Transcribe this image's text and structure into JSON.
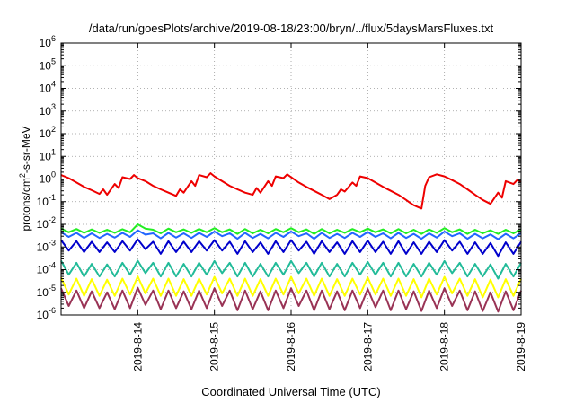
{
  "chart_data": {
    "type": "line",
    "title": "/data/run/goesPlots/archive/2019-08-18/23:00/bryn/../flux/5daysMarsFluxes.txt",
    "xlabel": "Coordinated Universal Time (UTC)",
    "ylabel": {
      "prefix": "protons/cm",
      "sup": "2",
      "suffix": "-s-sr-MeV"
    },
    "yscale": "log",
    "ylim": [
      1e-06,
      1000000.0
    ],
    "xlim": [
      13.0,
      19.0
    ],
    "grid": true,
    "legend": "none",
    "x_ticks": [
      {
        "x": 14,
        "label": "2019-8-14"
      },
      {
        "x": 15,
        "label": "2019-8-15"
      },
      {
        "x": 16,
        "label": "2019-8-16"
      },
      {
        "x": 17,
        "label": "2019-8-17"
      },
      {
        "x": 18,
        "label": "2019-8-18"
      },
      {
        "x": 19,
        "label": "2019-8-19"
      }
    ],
    "y_ticks": [
      {
        "exp": -6,
        "label_base": "10",
        "label_exp": "-6"
      },
      {
        "exp": -5,
        "label_base": "10",
        "label_exp": "-5"
      },
      {
        "exp": -4,
        "label_base": "10",
        "label_exp": "-4"
      },
      {
        "exp": -3,
        "label_base": "10",
        "label_exp": "-3"
      },
      {
        "exp": -2,
        "label_base": "10",
        "label_exp": "-2"
      },
      {
        "exp": -1,
        "label_base": "10",
        "label_exp": "-1"
      },
      {
        "exp": 0,
        "label_base": "10",
        "label_exp": "0"
      },
      {
        "exp": 1,
        "label_base": "10",
        "label_exp": "1"
      },
      {
        "exp": 2,
        "label_base": "10",
        "label_exp": "2"
      },
      {
        "exp": 3,
        "label_base": "10",
        "label_exp": "3"
      },
      {
        "exp": 4,
        "label_base": "10",
        "label_exp": "4"
      },
      {
        "exp": 5,
        "label_base": "10",
        "label_exp": "5"
      },
      {
        "exp": 6,
        "label_base": "10",
        "label_exp": "6"
      }
    ],
    "series": [
      {
        "color": "#ee0000",
        "x": [
          13.0,
          13.1,
          13.2,
          13.3,
          13.4,
          13.5,
          13.55,
          13.6,
          13.7,
          13.75,
          13.8,
          13.9,
          13.95,
          14.0,
          14.1,
          14.2,
          14.3,
          14.4,
          14.5,
          14.55,
          14.6,
          14.7,
          14.75,
          14.8,
          14.9,
          14.95,
          15.0,
          15.1,
          15.2,
          15.3,
          15.4,
          15.5,
          15.55,
          15.6,
          15.7,
          15.75,
          15.8,
          15.9,
          15.95,
          16.0,
          16.1,
          16.2,
          16.3,
          16.4,
          16.5,
          16.6,
          16.65,
          16.7,
          16.8,
          16.85,
          16.9,
          17.0,
          17.1,
          17.2,
          17.3,
          17.4,
          17.5,
          17.55,
          17.6,
          17.7,
          17.75,
          17.8,
          17.9,
          18.0,
          18.1,
          18.2,
          18.3,
          18.4,
          18.5,
          18.6,
          18.7,
          18.75,
          18.8,
          18.9,
          18.95,
          19.0
        ],
        "y": [
          1.5,
          1.1,
          0.7,
          0.45,
          0.32,
          0.22,
          0.35,
          0.2,
          0.6,
          0.4,
          1.2,
          1.0,
          1.5,
          1.1,
          0.8,
          0.5,
          0.35,
          0.25,
          0.18,
          0.35,
          0.25,
          0.8,
          0.5,
          1.5,
          1.2,
          1.8,
          1.3,
          0.8,
          0.5,
          0.35,
          0.25,
          0.2,
          0.4,
          0.25,
          0.8,
          0.5,
          1.3,
          1.1,
          1.6,
          1.2,
          0.7,
          0.45,
          0.3,
          0.2,
          0.13,
          0.2,
          0.35,
          0.28,
          0.7,
          0.5,
          1.3,
          1.1,
          0.7,
          0.45,
          0.3,
          0.2,
          0.12,
          0.09,
          0.07,
          0.05,
          0.5,
          1.2,
          1.6,
          1.3,
          0.9,
          0.6,
          0.35,
          0.2,
          0.12,
          0.08,
          0.25,
          0.15,
          0.8,
          0.6,
          0.9,
          0.75
        ]
      },
      {
        "color": "#22ee22",
        "x": [
          13.0,
          13.1,
          13.2,
          13.3,
          13.4,
          13.5,
          13.6,
          13.7,
          13.8,
          13.9,
          14.0,
          14.1,
          14.2,
          14.3,
          14.4,
          14.5,
          14.6,
          14.7,
          14.8,
          14.9,
          15.0,
          15.1,
          15.2,
          15.3,
          15.4,
          15.5,
          15.6,
          15.7,
          15.8,
          15.9,
          16.0,
          16.1,
          16.2,
          16.3,
          16.4,
          16.5,
          16.6,
          16.7,
          16.8,
          16.9,
          17.0,
          17.1,
          17.2,
          17.3,
          17.4,
          17.5,
          17.6,
          17.7,
          17.8,
          17.9,
          18.0,
          18.1,
          18.2,
          18.3,
          18.4,
          18.5,
          18.6,
          18.7,
          18.8,
          18.9,
          19.0
        ],
        "y": [
          0.0065,
          0.0045,
          0.0062,
          0.0042,
          0.006,
          0.0042,
          0.0058,
          0.0042,
          0.0061,
          0.0045,
          0.01,
          0.0065,
          0.0058,
          0.004,
          0.0065,
          0.0045,
          0.006,
          0.0042,
          0.0062,
          0.0045,
          0.0068,
          0.0045,
          0.006,
          0.0038,
          0.0062,
          0.004,
          0.0058,
          0.004,
          0.0062,
          0.0045,
          0.0068,
          0.0045,
          0.006,
          0.0038,
          0.0062,
          0.004,
          0.0058,
          0.0042,
          0.0062,
          0.0045,
          0.0065,
          0.0045,
          0.006,
          0.004,
          0.0062,
          0.004,
          0.0058,
          0.0038,
          0.006,
          0.0042,
          0.0068,
          0.0045,
          0.006,
          0.0038,
          0.0058,
          0.004,
          0.0055,
          0.0038,
          0.0058,
          0.004,
          0.006
        ]
      },
      {
        "color": "#2266ff",
        "x": [
          13.0,
          13.1,
          13.2,
          13.3,
          13.4,
          13.5,
          13.6,
          13.7,
          13.8,
          13.9,
          14.0,
          14.1,
          14.2,
          14.3,
          14.4,
          14.5,
          14.6,
          14.7,
          14.8,
          14.9,
          15.0,
          15.1,
          15.2,
          15.3,
          15.4,
          15.5,
          15.6,
          15.7,
          15.8,
          15.9,
          16.0,
          16.1,
          16.2,
          16.3,
          16.4,
          16.5,
          16.6,
          16.7,
          16.8,
          16.9,
          17.0,
          17.1,
          17.2,
          17.3,
          17.4,
          17.5,
          17.6,
          17.7,
          17.8,
          17.9,
          18.0,
          18.1,
          18.2,
          18.3,
          18.4,
          18.5,
          18.6,
          18.7,
          18.8,
          18.9,
          19.0
        ],
        "y": [
          0.0045,
          0.0028,
          0.0042,
          0.0025,
          0.004,
          0.0025,
          0.0038,
          0.0026,
          0.0042,
          0.0028,
          0.0055,
          0.0035,
          0.004,
          0.0024,
          0.0042,
          0.0026,
          0.004,
          0.0025,
          0.0042,
          0.0028,
          0.0048,
          0.003,
          0.004,
          0.0023,
          0.0042,
          0.0025,
          0.0038,
          0.0024,
          0.0042,
          0.0028,
          0.0048,
          0.003,
          0.004,
          0.0023,
          0.0042,
          0.0025,
          0.0038,
          0.0025,
          0.0042,
          0.0028,
          0.0046,
          0.0028,
          0.004,
          0.0024,
          0.0042,
          0.0025,
          0.0038,
          0.0023,
          0.004,
          0.0026,
          0.0048,
          0.003,
          0.004,
          0.0023,
          0.0038,
          0.0024,
          0.0036,
          0.0022,
          0.0038,
          0.0024,
          0.004
        ]
      },
      {
        "color": "#0000cc",
        "x": [
          13.0,
          13.1,
          13.2,
          13.3,
          13.4,
          13.5,
          13.6,
          13.7,
          13.8,
          13.9,
          14.0,
          14.1,
          14.2,
          14.3,
          14.4,
          14.5,
          14.6,
          14.7,
          14.8,
          14.9,
          15.0,
          15.1,
          15.2,
          15.3,
          15.4,
          15.5,
          15.6,
          15.7,
          15.8,
          15.9,
          16.0,
          16.1,
          16.2,
          16.3,
          16.4,
          16.5,
          16.6,
          16.7,
          16.8,
          16.9,
          17.0,
          17.1,
          17.2,
          17.3,
          17.4,
          17.5,
          17.6,
          17.7,
          17.8,
          17.9,
          18.0,
          18.1,
          18.2,
          18.3,
          18.4,
          18.5,
          18.6,
          18.7,
          18.8,
          18.9,
          19.0
        ],
        "y": [
          0.002,
          0.0007,
          0.0018,
          0.0006,
          0.0017,
          0.0006,
          0.0016,
          0.0006,
          0.0018,
          0.0007,
          0.0022,
          0.0008,
          0.0017,
          0.0005,
          0.0018,
          0.0006,
          0.0017,
          0.0006,
          0.0018,
          0.0007,
          0.002,
          0.0007,
          0.0017,
          0.0005,
          0.0018,
          0.0006,
          0.0016,
          0.0005,
          0.0018,
          0.0006,
          0.002,
          0.0007,
          0.0017,
          0.0005,
          0.0018,
          0.0006,
          0.0016,
          0.0005,
          0.0018,
          0.0006,
          0.0019,
          0.0006,
          0.0017,
          0.0005,
          0.0018,
          0.0005,
          0.0016,
          0.0005,
          0.0017,
          0.0006,
          0.002,
          0.0007,
          0.0017,
          0.0005,
          0.0016,
          0.0005,
          0.0015,
          0.0004,
          0.0016,
          0.0005,
          0.0017
        ]
      },
      {
        "color": "#22bb99",
        "x": [
          13.0,
          13.1,
          13.2,
          13.3,
          13.4,
          13.5,
          13.6,
          13.7,
          13.8,
          13.9,
          14.0,
          14.1,
          14.2,
          14.3,
          14.4,
          14.5,
          14.6,
          14.7,
          14.8,
          14.9,
          15.0,
          15.1,
          15.2,
          15.3,
          15.4,
          15.5,
          15.6,
          15.7,
          15.8,
          15.9,
          16.0,
          16.1,
          16.2,
          16.3,
          16.4,
          16.5,
          16.6,
          16.7,
          16.8,
          16.9,
          17.0,
          17.1,
          17.2,
          17.3,
          17.4,
          17.5,
          17.6,
          17.7,
          17.8,
          17.9,
          18.0,
          18.1,
          18.2,
          18.3,
          18.4,
          18.5,
          18.6,
          18.7,
          18.8,
          18.9,
          19.0
        ],
        "y": [
          0.00025,
          6e-05,
          0.0002,
          5e-05,
          0.00018,
          5e-05,
          0.00017,
          5e-05,
          0.0002,
          6e-05,
          0.00025,
          7e-05,
          0.0002,
          5e-05,
          0.0002,
          5e-05,
          0.00018,
          5e-05,
          0.0002,
          6e-05,
          0.00024,
          7e-05,
          0.0002,
          5e-05,
          0.0002,
          5e-05,
          0.00018,
          5e-05,
          0.0002,
          6e-05,
          0.00024,
          7e-05,
          0.0002,
          5e-05,
          0.0002,
          5e-05,
          0.00018,
          5e-05,
          0.0002,
          6e-05,
          0.00022,
          6e-05,
          0.0002,
          5e-05,
          0.0002,
          5e-05,
          0.00018,
          5e-05,
          0.0002,
          6e-05,
          0.00024,
          7e-05,
          0.0002,
          5e-05,
          0.00018,
          5e-05,
          0.00017,
          4e-05,
          0.00018,
          5e-05,
          0.0002
        ]
      },
      {
        "color": "#ffff00",
        "x": [
          13.0,
          13.1,
          13.2,
          13.3,
          13.4,
          13.5,
          13.6,
          13.7,
          13.8,
          13.9,
          14.0,
          14.1,
          14.2,
          14.3,
          14.4,
          14.5,
          14.6,
          14.7,
          14.8,
          14.9,
          15.0,
          15.1,
          15.2,
          15.3,
          15.4,
          15.5,
          15.6,
          15.7,
          15.8,
          15.9,
          16.0,
          16.1,
          16.2,
          16.3,
          16.4,
          16.5,
          16.6,
          16.7,
          16.8,
          16.9,
          17.0,
          17.1,
          17.2,
          17.3,
          17.4,
          17.5,
          17.6,
          17.7,
          17.8,
          17.9,
          18.0,
          18.1,
          18.2,
          18.3,
          18.4,
          18.5,
          18.6,
          18.7,
          18.8,
          18.9,
          19.0
        ],
        "y": [
          4.5e-05,
          8e-06,
          4e-05,
          7e-06,
          3.8e-05,
          7e-06,
          3.6e-05,
          7e-06,
          4e-05,
          8e-06,
          5e-05,
          9e-06,
          4e-05,
          7e-06,
          4e-05,
          7e-06,
          3.8e-05,
          7e-06,
          4e-05,
          8e-06,
          4.8e-05,
          9e-06,
          4e-05,
          7e-06,
          4e-05,
          7e-06,
          3.8e-05,
          7e-06,
          4e-05,
          8e-06,
          4.8e-05,
          9e-06,
          4e-05,
          7e-06,
          4e-05,
          7e-06,
          3.8e-05,
          7e-06,
          4e-05,
          8e-06,
          4.5e-05,
          8e-06,
          4e-05,
          7e-06,
          4e-05,
          7e-06,
          3.8e-05,
          6e-06,
          4e-05,
          8e-06,
          4.8e-05,
          9e-06,
          4e-05,
          7e-06,
          3.8e-05,
          6e-06,
          3.6e-05,
          6e-06,
          3.8e-05,
          7e-06,
          4e-05
        ]
      },
      {
        "color": "#993355",
        "x": [
          13.0,
          13.1,
          13.2,
          13.3,
          13.4,
          13.5,
          13.6,
          13.7,
          13.8,
          13.9,
          14.0,
          14.1,
          14.2,
          14.3,
          14.4,
          14.5,
          14.6,
          14.7,
          14.8,
          14.9,
          15.0,
          15.1,
          15.2,
          15.3,
          15.4,
          15.5,
          15.6,
          15.7,
          15.8,
          15.9,
          16.0,
          16.1,
          16.2,
          16.3,
          16.4,
          16.5,
          16.6,
          16.7,
          16.8,
          16.9,
          17.0,
          17.1,
          17.2,
          17.3,
          17.4,
          17.5,
          17.6,
          17.7,
          17.8,
          17.9,
          18.0,
          18.1,
          18.2,
          18.3,
          18.4,
          18.5,
          18.6,
          18.7,
          18.8,
          18.9,
          19.0
        ],
        "y": [
          1.5e-05,
          2.5e-06,
          1.2e-05,
          2e-06,
          1.1e-05,
          2e-06,
          1e-05,
          1.8e-06,
          1.2e-05,
          2e-06,
          1.6e-05,
          2.8e-06,
          1.2e-05,
          1.8e-06,
          1.2e-05,
          2e-06,
          1.1e-05,
          1.8e-06,
          1.2e-05,
          2e-06,
          1.5e-05,
          2.5e-06,
          1.2e-05,
          1.6e-06,
          1.2e-05,
          1.8e-06,
          1.1e-05,
          1.6e-06,
          1.2e-05,
          2e-06,
          1.5e-05,
          2.5e-06,
          1.2e-05,
          1.6e-06,
          1.2e-05,
          1.8e-06,
          1.1e-05,
          1.6e-06,
          1.2e-05,
          2e-06,
          1.4e-05,
          2.2e-06,
          1.2e-05,
          1.6e-06,
          1.2e-05,
          1.8e-06,
          1.1e-05,
          1.5e-06,
          1.2e-05,
          2e-06,
          1.5e-05,
          2.5e-06,
          1.2e-05,
          1.6e-06,
          1.1e-05,
          1.5e-06,
          1e-05,
          1.4e-06,
          1.1e-05,
          1.6e-06,
          1.2e-05
        ]
      }
    ]
  }
}
